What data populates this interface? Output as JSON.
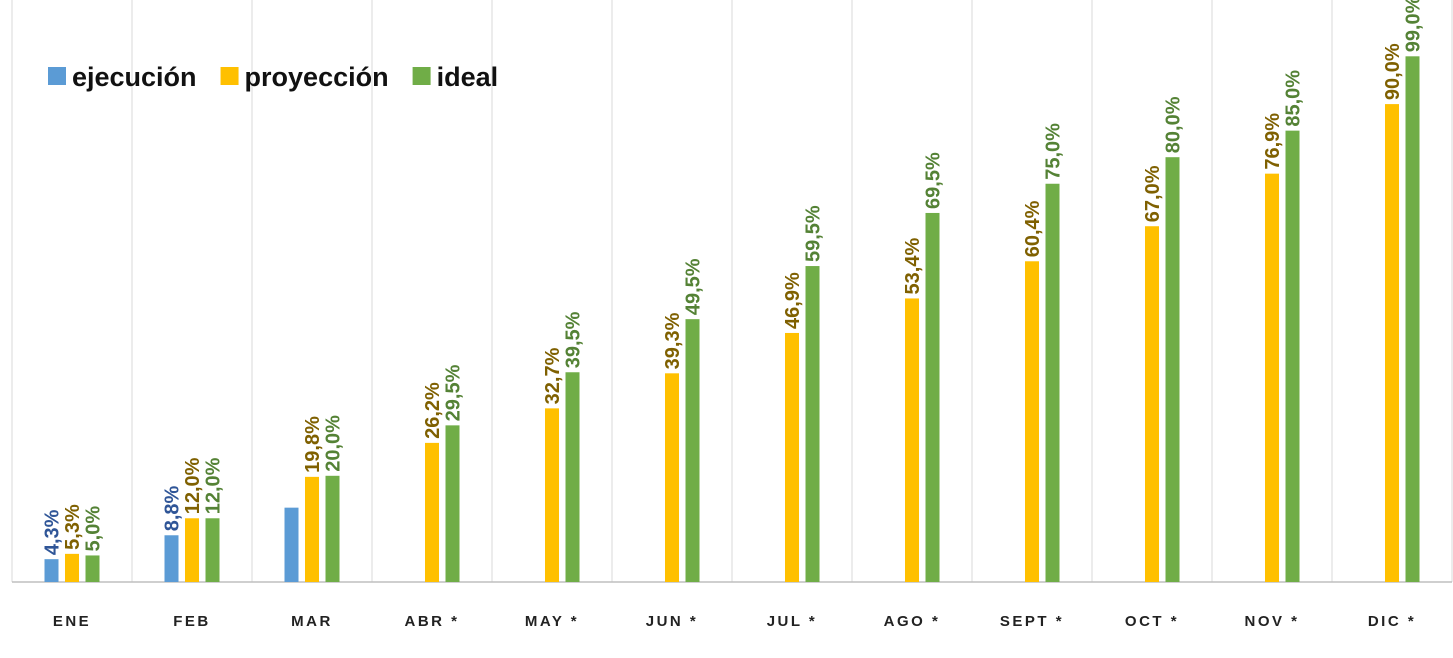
{
  "chart_data": {
    "type": "bar",
    "categories": [
      "ENE",
      "FEB",
      "MAR",
      "ABR *",
      "MAY *",
      "JUN *",
      "JUL *",
      "AGO *",
      "SEPT *",
      "OCT *",
      "NOV *",
      "DIC *"
    ],
    "series": [
      {
        "name": "ejecución",
        "color": "#5B9BD5",
        "label_color": "#2F5597",
        "values": [
          4.3,
          8.8,
          14,
          null,
          null,
          null,
          null,
          null,
          null,
          null,
          null,
          null
        ],
        "value_labels": [
          "4,3%",
          "8,8%",
          null,
          null,
          null,
          null,
          null,
          null,
          null,
          null,
          null,
          null
        ]
      },
      {
        "name": "proyección",
        "color": "#FFC000",
        "label_color": "#7F6000",
        "values": [
          5.3,
          12.0,
          19.8,
          26.2,
          32.7,
          39.3,
          46.9,
          53.4,
          60.4,
          67.0,
          76.9,
          90.0
        ],
        "value_labels": [
          "5,3%",
          "12,0%",
          "19,8%",
          "26,2%",
          "32,7%",
          "39,3%",
          "46,9%",
          "53,4%",
          "60,4%",
          "67,0%",
          "76,9%",
          "90,0%"
        ]
      },
      {
        "name": "ideal",
        "color": "#70AD47",
        "label_color": "#548235",
        "values": [
          5.0,
          12.0,
          20.0,
          29.5,
          39.5,
          49.5,
          59.5,
          69.5,
          75.0,
          80.0,
          85.0,
          99.0
        ],
        "value_labels": [
          "5,0%",
          "12,0%",
          "20,0%",
          "29,5%",
          "39,5%",
          "49,5%",
          "59,5%",
          "69,5%",
          "75,0%",
          "80,0%",
          "85,0%",
          "99,0%"
        ]
      }
    ],
    "ylim": [
      0,
      100
    ],
    "legend": "top-left"
  }
}
